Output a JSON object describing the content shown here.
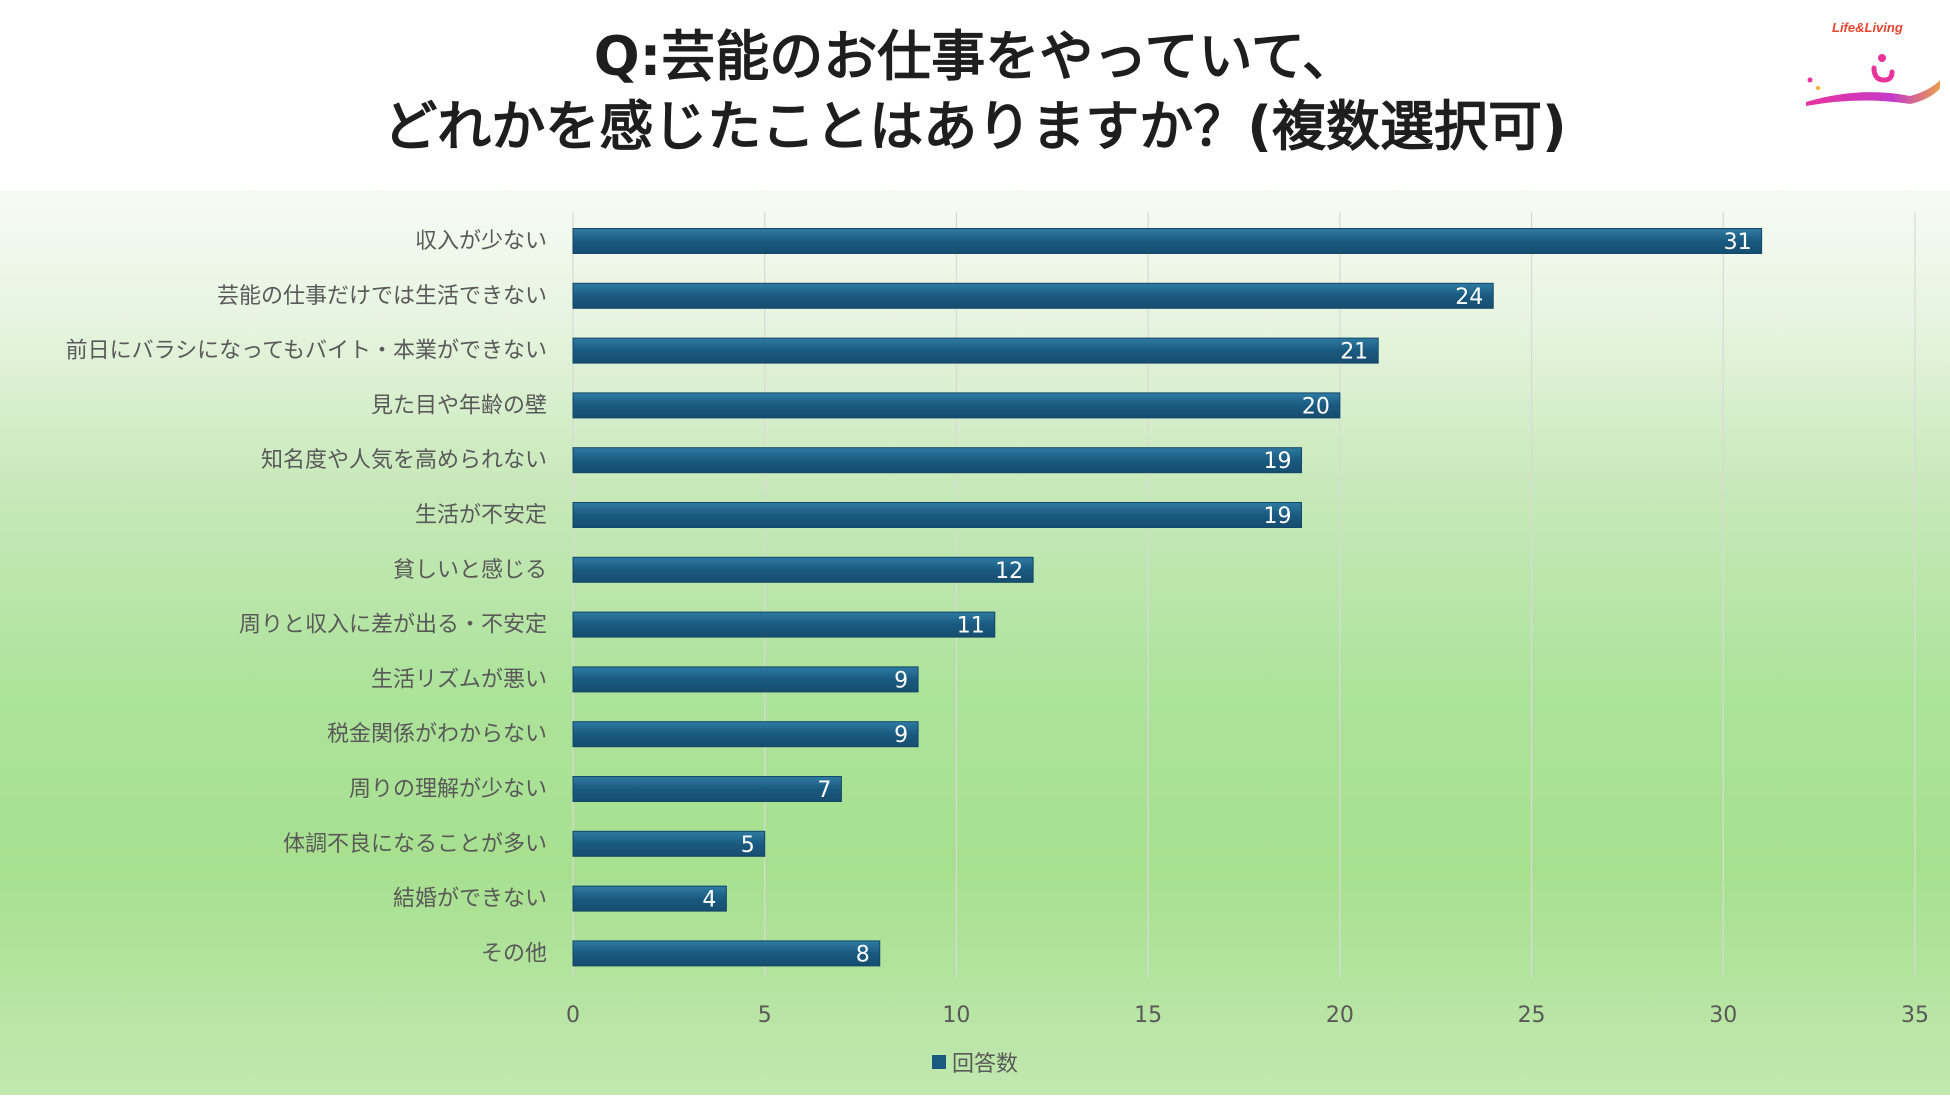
{
  "title": {
    "line1": "Q:芸能のお仕事をやっていて、",
    "line2": "どれかを感じたことはありますか？(複数選択可)"
  },
  "logo": {
    "text": "Life&Living",
    "icon": "life-living-logo"
  },
  "colors": {
    "bar": "#1a5a80",
    "bar_highlight": "#2f7ba3",
    "label": "#595959",
    "value_label": "#ffffff",
    "grid": "#d9d9d9"
  },
  "chart_data": {
    "type": "bar",
    "orientation": "horizontal",
    "title": "Q:芸能のお仕事をやっていて、どれかを感じたことはありますか？(複数選択可)",
    "categories": [
      "収入が少ない",
      "芸能の仕事だけでは生活できない",
      "前日にバラシになってもバイト・本業ができない",
      "見た目や年齢の壁",
      "知名度や人気を高められない",
      "生活が不安定",
      "貧しいと感じる",
      "周りと収入に差が出る・不安定",
      "生活リズムが悪い",
      "税金関係がわからない",
      "周りの理解が少ない",
      "体調不良になることが多い",
      "結婚ができない",
      "その他"
    ],
    "series": [
      {
        "name": "回答数",
        "values": [
          31,
          24,
          21,
          20,
          19,
          19,
          12,
          11,
          9,
          9,
          7,
          5,
          4,
          8
        ]
      }
    ],
    "xlim": [
      0,
      35
    ],
    "xticks": [
      0,
      5,
      10,
      15,
      20,
      25,
      30,
      35
    ],
    "xlabel": "",
    "ylabel": "",
    "grid": true,
    "legend": "bottom",
    "data_labels": true
  }
}
